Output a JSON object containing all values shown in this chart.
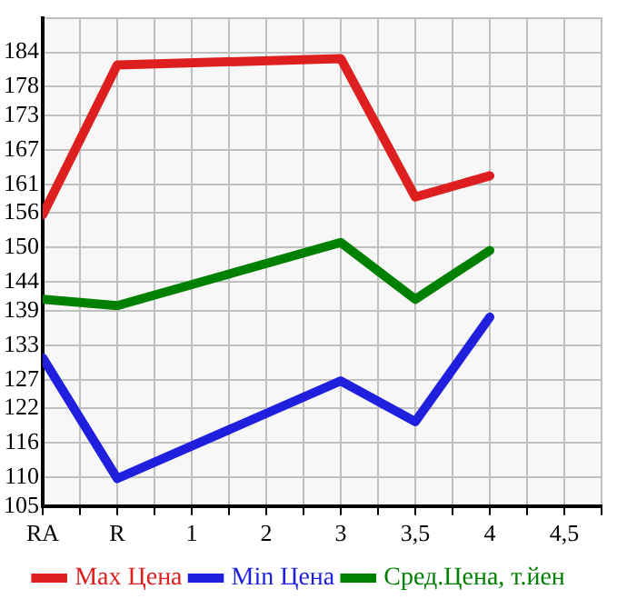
{
  "chart_data": {
    "type": "line",
    "categories": [
      "RA",
      "R",
      "1",
      "2",
      "3",
      "3,5",
      "4",
      "4,5"
    ],
    "series": [
      {
        "name": "Max Цена",
        "color": "#dd1f1f",
        "values": [
          155.7,
          181.8,
          null,
          null,
          182.9,
          158.8,
          162.5,
          null
        ]
      },
      {
        "name": "Min Цена",
        "color": "#1f1fdd",
        "values": [
          130.8,
          109.8,
          null,
          null,
          126.8,
          119.7,
          137.9,
          null
        ]
      },
      {
        "name": "Сред.Цена, т.йен",
        "color": "#008000",
        "values": [
          141.0,
          139.9,
          null,
          null,
          150.9,
          141.0,
          149.5,
          null
        ]
      }
    ],
    "ylim": [
      105,
      190
    ],
    "yticks": [
      105,
      110,
      116,
      122,
      127,
      133,
      139,
      144,
      150,
      156,
      161,
      167,
      173,
      178,
      184,
      {
        "value": 190,
        "label": null
      }
    ],
    "grid": true,
    "legend": "bottom",
    "marker": "none",
    "line_style": "solid"
  }
}
